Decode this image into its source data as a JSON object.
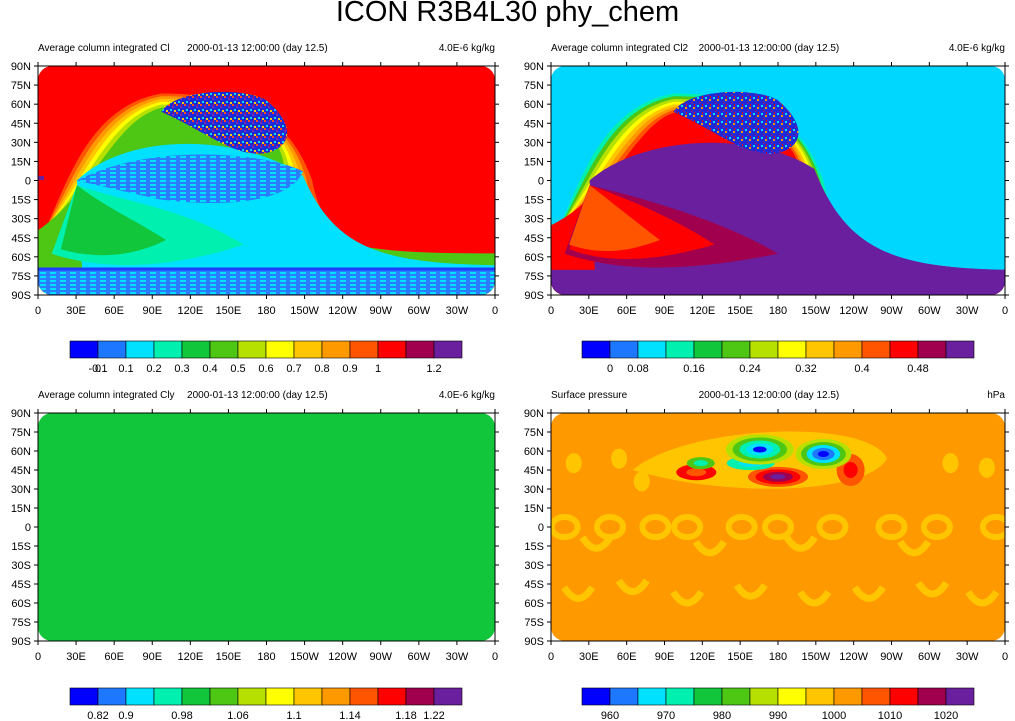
{
  "title": "ICON R3B4L30 phy_chem",
  "lat_labels": [
    "90N",
    "75N",
    "60N",
    "45N",
    "30N",
    "15N",
    "0",
    "15S",
    "30S",
    "45S",
    "60S",
    "75S",
    "90S"
  ],
  "lon_labels": [
    "0",
    "30E",
    "60E",
    "90E",
    "120E",
    "150E",
    "180",
    "150W",
    "120W",
    "90W",
    "60W",
    "30W",
    "0"
  ],
  "palette": [
    "#0000ff",
    "#1e78ff",
    "#00e1ff",
    "#00f0b0",
    "#11c63a",
    "#4ec614",
    "#b6e000",
    "#ffff00",
    "#ffc600",
    "#ff9900",
    "#ff5500",
    "#ff0000",
    "#a0004e",
    "#6a1f9e"
  ],
  "chart_data": [
    {
      "type": "heatmap",
      "title": "Average column integrated Cl",
      "date": "2000-01-13 12:00:00 (day 12.5)",
      "units": "4.0E-6 kg/kg",
      "colorbar_labels": [
        "-0.1",
        "0",
        "0.1",
        "0.2",
        "0.3",
        "0.4",
        "0.5",
        "0.6",
        "0.7",
        "0.8",
        "0.9",
        "1",
        "1.2"
      ],
      "colorbar_levels": [
        -0.1,
        0,
        0.1,
        0.2,
        0.3,
        0.4,
        0.5,
        0.6,
        0.7,
        0.8,
        0.9,
        1,
        1.1,
        1.2
      ],
      "background_value": 1.0
    },
    {
      "type": "heatmap",
      "title": "Average column integrated Cl2",
      "date": "2000-01-13 12:00:00 (day 12.5)",
      "units": "4.0E-6 kg/kg",
      "colorbar_labels": [
        "0",
        "0.08",
        "0.16",
        "0.24",
        "0.32",
        "0.4",
        "0.48"
      ],
      "colorbar_levels": [
        0,
        0.04,
        0.08,
        0.12,
        0.16,
        0.2,
        0.24,
        0.28,
        0.32,
        0.36,
        0.4,
        0.44,
        0.48,
        0.52
      ],
      "background_value": 0.0
    },
    {
      "type": "heatmap",
      "title": "Average column integrated Cly",
      "date": "2000-01-13 12:00:00 (day 12.5)",
      "units": "4.0E-6 kg/kg",
      "colorbar_labels": [
        "0.82",
        "0.9",
        "0.98",
        "1.06",
        "1.1",
        "1.14",
        "1.18",
        "1.22"
      ],
      "colorbar_levels": [
        0.82,
        0.86,
        0.9,
        0.94,
        0.98,
        1.02,
        1.06,
        1.08,
        1.1,
        1.12,
        1.14,
        1.16,
        1.18,
        1.22
      ],
      "background_value": 1.0
    },
    {
      "type": "heatmap",
      "title": "Surface pressure",
      "date": "2000-01-13 12:00:00 (day 12.5)",
      "units": "hPa",
      "colorbar_labels": [
        "960",
        "970",
        "980",
        "990",
        "1000",
        "1010",
        "1020"
      ],
      "colorbar_levels": [
        955,
        960,
        965,
        970,
        975,
        980,
        985,
        990,
        995,
        1000,
        1005,
        1010,
        1015,
        1020
      ],
      "background_value": 1005
    }
  ]
}
